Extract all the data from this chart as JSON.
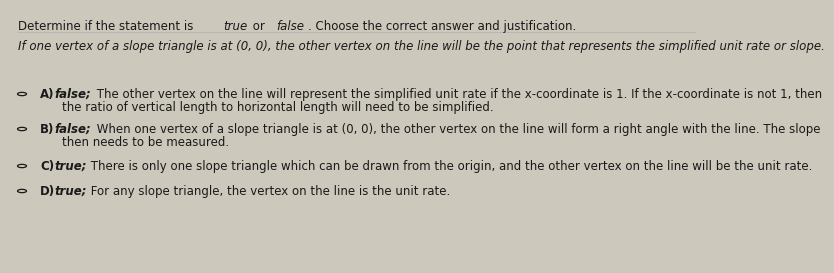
{
  "background_color": "#cdc8bc",
  "text_color": "#1a1a1a",
  "font_size": 8.5,
  "title_segs": [
    {
      "text": "Determine if the statement is ",
      "italic": false,
      "bold": false
    },
    {
      "text": "true",
      "italic": true,
      "bold": false
    },
    {
      "text": " or ",
      "italic": false,
      "bold": false
    },
    {
      "text": "false",
      "italic": true,
      "bold": false
    },
    {
      "text": ". Choose the correct answer and justification.",
      "italic": false,
      "bold": false
    }
  ],
  "statement": "If one vertex of a slope triangle is at (0, 0), the other vertex on the line will be the point that represents the simplified unit rate or slope.",
  "options": [
    {
      "label": "A)",
      "qualifier": "false;",
      "line1": " The other vertex on the line will represent the simplified unit rate if the x-coordinate is 1. If the x-coordinate is not 1, then",
      "line2": "the ratio of vertical length to horizontal length will need to be simplified."
    },
    {
      "label": "B)",
      "qualifier": "false;",
      "line1": " When one vertex of a slope triangle is at (0, 0), the other vertex on the line will form a right angle with the line. The slope",
      "line2": "then needs to be measured."
    },
    {
      "label": "C)",
      "qualifier": "true;",
      "line1": " There is only one slope triangle which can be drawn from the origin, and the other vertex on the line will be the unit rate.",
      "line2": null
    },
    {
      "label": "D)",
      "qualifier": "true;",
      "line1": " For any slope triangle, the vertex on the line is the unit rate.",
      "line2": null
    }
  ]
}
